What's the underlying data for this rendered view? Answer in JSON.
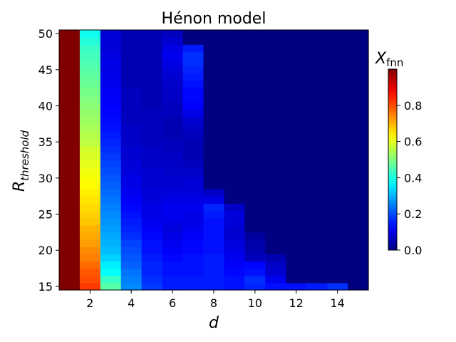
{
  "chart_data": {
    "type": "heatmap",
    "title": "Hénon model",
    "xlabel": "d",
    "ylabel_base": "R",
    "ylabel_sub": "threshold",
    "colorbar_label_base": "X",
    "colorbar_label_sub": "fnn",
    "colormap": "jet",
    "x": [
      1,
      2,
      3,
      4,
      5,
      6,
      7,
      8,
      9,
      10,
      11,
      12,
      13,
      14,
      15
    ],
    "y": [
      15,
      16,
      17,
      18,
      19,
      20,
      21,
      22,
      23,
      24,
      25,
      26,
      27,
      28,
      29,
      30,
      31,
      32,
      33,
      34,
      35,
      36,
      37,
      38,
      39,
      40,
      41,
      42,
      43,
      44,
      45,
      46,
      47,
      48,
      49,
      50
    ],
    "x_ticks": [
      "2",
      "4",
      "6",
      "8",
      "10",
      "12",
      "14"
    ],
    "y_ticks": [
      "15",
      "20",
      "25",
      "30",
      "35",
      "40",
      "45",
      "50"
    ],
    "colorbar_ticks": [
      "0.0",
      "0.2",
      "0.4",
      "0.6",
      "0.8"
    ],
    "value_range": [
      0,
      1
    ],
    "grid": false,
    "columns": [
      {
        "d": 1,
        "from_R": [
          15,
          50
        ],
        "to_R": [
          1.0,
          1.0
        ]
      },
      {
        "d": 2,
        "points": [
          [
            15,
            0.82
          ],
          [
            16,
            0.8
          ],
          [
            17,
            0.79
          ],
          [
            18,
            0.77
          ],
          [
            19,
            0.75
          ],
          [
            20,
            0.74
          ],
          [
            21,
            0.72
          ],
          [
            22,
            0.71
          ],
          [
            23,
            0.7
          ],
          [
            24,
            0.68
          ],
          [
            25,
            0.67
          ],
          [
            26,
            0.66
          ],
          [
            27,
            0.65
          ],
          [
            28,
            0.64
          ],
          [
            29,
            0.63
          ],
          [
            30,
            0.62
          ],
          [
            31,
            0.61
          ],
          [
            32,
            0.6
          ],
          [
            33,
            0.59
          ],
          [
            34,
            0.58
          ],
          [
            35,
            0.56
          ],
          [
            36,
            0.55
          ],
          [
            37,
            0.54
          ],
          [
            38,
            0.53
          ],
          [
            39,
            0.52
          ],
          [
            40,
            0.51
          ],
          [
            41,
            0.5
          ],
          [
            42,
            0.49
          ],
          [
            43,
            0.48
          ],
          [
            44,
            0.47
          ],
          [
            45,
            0.46
          ],
          [
            46,
            0.45
          ],
          [
            47,
            0.44
          ],
          [
            48,
            0.43
          ],
          [
            49,
            0.41
          ],
          [
            50,
            0.39
          ]
        ]
      },
      {
        "d": 3,
        "points": [
          [
            15,
            0.46
          ],
          [
            16,
            0.43
          ],
          [
            17,
            0.38
          ],
          [
            18,
            0.36
          ],
          [
            19,
            0.33
          ],
          [
            20,
            0.31
          ],
          [
            21,
            0.3
          ],
          [
            22,
            0.29
          ],
          [
            23,
            0.28
          ],
          [
            24,
            0.27
          ],
          [
            25,
            0.26
          ],
          [
            26,
            0.25
          ],
          [
            27,
            0.24
          ],
          [
            28,
            0.23
          ],
          [
            29,
            0.22
          ],
          [
            30,
            0.21
          ],
          [
            31,
            0.2
          ],
          [
            32,
            0.19
          ],
          [
            33,
            0.18
          ],
          [
            34,
            0.17
          ],
          [
            35,
            0.16
          ],
          [
            36,
            0.15
          ],
          [
            37,
            0.14
          ],
          [
            38,
            0.135
          ],
          [
            39,
            0.13
          ],
          [
            40,
            0.125
          ],
          [
            41,
            0.12
          ],
          [
            42,
            0.115
          ],
          [
            43,
            0.11
          ],
          [
            44,
            0.105
          ],
          [
            45,
            0.1
          ],
          [
            46,
            0.1
          ],
          [
            47,
            0.095
          ],
          [
            48,
            0.09
          ],
          [
            49,
            0.09
          ],
          [
            50,
            0.085
          ]
        ]
      },
      {
        "d": 4,
        "points": [
          [
            15,
            0.26
          ],
          [
            16,
            0.25
          ],
          [
            17,
            0.24
          ],
          [
            18,
            0.22
          ],
          [
            19,
            0.21
          ],
          [
            20,
            0.2
          ],
          [
            21,
            0.19
          ],
          [
            22,
            0.17
          ],
          [
            23,
            0.16
          ],
          [
            24,
            0.15
          ],
          [
            25,
            0.14
          ],
          [
            26,
            0.13
          ],
          [
            27,
            0.12
          ],
          [
            28,
            0.11
          ],
          [
            29,
            0.1
          ],
          [
            30,
            0.1
          ],
          [
            31,
            0.09
          ],
          [
            32,
            0.09
          ],
          [
            33,
            0.08
          ],
          [
            34,
            0.08
          ],
          [
            35,
            0.07
          ],
          [
            36,
            0.07
          ],
          [
            37,
            0.07
          ],
          [
            38,
            0.06
          ],
          [
            39,
            0.06
          ],
          [
            40,
            0.06
          ],
          [
            41,
            0.06
          ],
          [
            42,
            0.06
          ],
          [
            43,
            0.05
          ],
          [
            44,
            0.05
          ],
          [
            45,
            0.05
          ],
          [
            46,
            0.05
          ],
          [
            47,
            0.05
          ],
          [
            48,
            0.05
          ],
          [
            49,
            0.05
          ],
          [
            50,
            0.05
          ]
        ]
      },
      {
        "d": 5,
        "points": [
          [
            15,
            0.18
          ],
          [
            16,
            0.17
          ],
          [
            17,
            0.16
          ],
          [
            18,
            0.16
          ],
          [
            19,
            0.15
          ],
          [
            20,
            0.14
          ],
          [
            21,
            0.14
          ],
          [
            22,
            0.13
          ],
          [
            23,
            0.12
          ],
          [
            24,
            0.11
          ],
          [
            25,
            0.1
          ],
          [
            26,
            0.1
          ],
          [
            27,
            0.09
          ],
          [
            28,
            0.09
          ],
          [
            29,
            0.08
          ],
          [
            30,
            0.08
          ],
          [
            31,
            0.08
          ],
          [
            32,
            0.07
          ],
          [
            33,
            0.07
          ],
          [
            34,
            0.07
          ],
          [
            35,
            0.06
          ],
          [
            36,
            0.06
          ],
          [
            37,
            0.06
          ],
          [
            38,
            0.06
          ],
          [
            39,
            0.06
          ],
          [
            40,
            0.05
          ],
          [
            41,
            0.05
          ],
          [
            42,
            0.05
          ],
          [
            43,
            0.05
          ],
          [
            44,
            0.05
          ],
          [
            45,
            0.05
          ],
          [
            46,
            0.05
          ],
          [
            47,
            0.05
          ],
          [
            48,
            0.05
          ],
          [
            49,
            0.05
          ],
          [
            50,
            0.05
          ]
        ]
      },
      {
        "d": 6,
        "points": [
          [
            15,
            0.15
          ],
          [
            16,
            0.15
          ],
          [
            17,
            0.14
          ],
          [
            18,
            0.14
          ],
          [
            19,
            0.13
          ],
          [
            20,
            0.12
          ],
          [
            21,
            0.11
          ],
          [
            22,
            0.1
          ],
          [
            23,
            0.09
          ],
          [
            24,
            0.1
          ],
          [
            25,
            0.11
          ],
          [
            26,
            0.11
          ],
          [
            27,
            0.1
          ],
          [
            28,
            0.09
          ],
          [
            29,
            0.08
          ],
          [
            30,
            0.08
          ],
          [
            31,
            0.07
          ],
          [
            32,
            0.07
          ],
          [
            33,
            0.07
          ],
          [
            34,
            0.06
          ],
          [
            35,
            0.06
          ],
          [
            36,
            0.05
          ],
          [
            37,
            0.05
          ],
          [
            38,
            0.05
          ],
          [
            39,
            0.06
          ],
          [
            40,
            0.06
          ],
          [
            41,
            0.07
          ],
          [
            42,
            0.07
          ],
          [
            43,
            0.07
          ],
          [
            44,
            0.08
          ],
          [
            45,
            0.09
          ],
          [
            46,
            0.1
          ],
          [
            47,
            0.11
          ],
          [
            48,
            0.1
          ],
          [
            49,
            0.08
          ],
          [
            50,
            0.06
          ]
        ]
      },
      {
        "d": 7,
        "points": [
          [
            15,
            0.15
          ],
          [
            16,
            0.15
          ],
          [
            17,
            0.14
          ],
          [
            18,
            0.14
          ],
          [
            19,
            0.14
          ],
          [
            20,
            0.13
          ],
          [
            21,
            0.13
          ],
          [
            22,
            0.12
          ],
          [
            23,
            0.11
          ],
          [
            24,
            0.1
          ],
          [
            25,
            0.1
          ],
          [
            26,
            0.11
          ],
          [
            27,
            0.1
          ],
          [
            28,
            0.09
          ],
          [
            29,
            0.09
          ],
          [
            30,
            0.08
          ],
          [
            31,
            0.07
          ],
          [
            32,
            0.06
          ],
          [
            33,
            0.05
          ],
          [
            34,
            0.05
          ],
          [
            35,
            0.05
          ],
          [
            36,
            0.06
          ],
          [
            37,
            0.07
          ],
          [
            38,
            0.08
          ],
          [
            39,
            0.1
          ],
          [
            40,
            0.12
          ],
          [
            41,
            0.13
          ],
          [
            42,
            0.13
          ],
          [
            43,
            0.14
          ],
          [
            44,
            0.15
          ],
          [
            45,
            0.16
          ],
          [
            46,
            0.17
          ],
          [
            47,
            0.17
          ],
          [
            48,
            0.15
          ],
          [
            49,
            0.0
          ],
          [
            50,
            0.0
          ]
        ]
      },
      {
        "d": 8,
        "points": [
          [
            15,
            0.15
          ],
          [
            16,
            0.15
          ],
          [
            17,
            0.15
          ],
          [
            18,
            0.15
          ],
          [
            19,
            0.15
          ],
          [
            20,
            0.14
          ],
          [
            21,
            0.14
          ],
          [
            22,
            0.14
          ],
          [
            23,
            0.14
          ],
          [
            24,
            0.14
          ],
          [
            25,
            0.15
          ],
          [
            26,
            0.16
          ],
          [
            27,
            0.1
          ],
          [
            28,
            0.07
          ]
        ]
      },
      {
        "d": 9,
        "points": [
          [
            15,
            0.14
          ],
          [
            16,
            0.14
          ],
          [
            17,
            0.13
          ],
          [
            18,
            0.12
          ],
          [
            19,
            0.11
          ],
          [
            20,
            0.1
          ],
          [
            21,
            0.09
          ],
          [
            22,
            0.08
          ],
          [
            23,
            0.08
          ],
          [
            24,
            0.09
          ],
          [
            25,
            0.09
          ],
          [
            26,
            0.07
          ]
        ]
      },
      {
        "d": 10,
        "points": [
          [
            15,
            0.16
          ],
          [
            16,
            0.17
          ],
          [
            17,
            0.14
          ],
          [
            18,
            0.13
          ],
          [
            19,
            0.06
          ],
          [
            20,
            0.05
          ],
          [
            21,
            0.04
          ],
          [
            22,
            0.03
          ]
        ]
      },
      {
        "d": 11,
        "points": [
          [
            15,
            0.14
          ],
          [
            16,
            0.11
          ],
          [
            17,
            0.08
          ],
          [
            18,
            0.07
          ],
          [
            19,
            0.05
          ]
        ]
      },
      {
        "d": 12,
        "points": [
          [
            15,
            0.14
          ]
        ]
      },
      {
        "d": 13,
        "points": [
          [
            15,
            0.15
          ]
        ]
      },
      {
        "d": 14,
        "points": [
          [
            15,
            0.17
          ]
        ]
      }
    ],
    "background_value": 0.0
  }
}
